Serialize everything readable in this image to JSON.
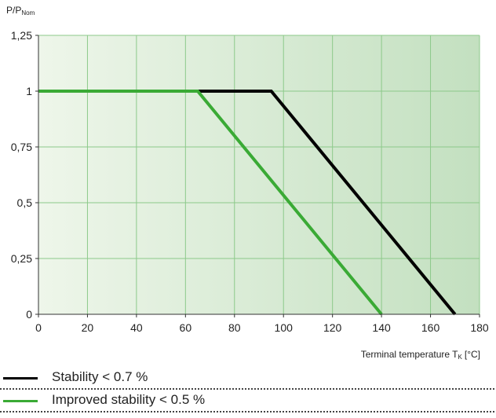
{
  "chart_data": {
    "type": "line",
    "ylabel_main": "P/P",
    "ylabel_sub": "Nom",
    "xlabel_main": "Terminal temperature  T",
    "xlabel_sub": "K",
    "xlabel_unit": "[°C]",
    "xlim": [
      0,
      180
    ],
    "ylim": [
      0,
      1.25
    ],
    "x_ticks": [
      0,
      20,
      40,
      60,
      80,
      100,
      120,
      140,
      160,
      180
    ],
    "x_tick_labels": [
      "0",
      "20",
      "40",
      "60",
      "80",
      "100",
      "120",
      "140",
      "160",
      "180"
    ],
    "y_ticks": [
      0,
      0.25,
      0.5,
      0.75,
      1,
      1.25
    ],
    "y_tick_labels": [
      "0",
      "0,25",
      "0,5",
      "0,75",
      "1",
      "1,25"
    ],
    "grid": true,
    "legend_position": "bottom",
    "series": [
      {
        "name": "Stability < 0.7 %",
        "color": "#000000",
        "x": [
          0,
          95,
          170
        ],
        "y": [
          1,
          1,
          0
        ]
      },
      {
        "name": "Improved stability < 0.5 %",
        "color": "#3aaa35",
        "x": [
          0,
          65,
          140
        ],
        "y": [
          1,
          1,
          0
        ]
      }
    ],
    "background_gradient": [
      "#eef6ea",
      "#c3e0c0"
    ],
    "grid_color": "#8cc98a"
  }
}
